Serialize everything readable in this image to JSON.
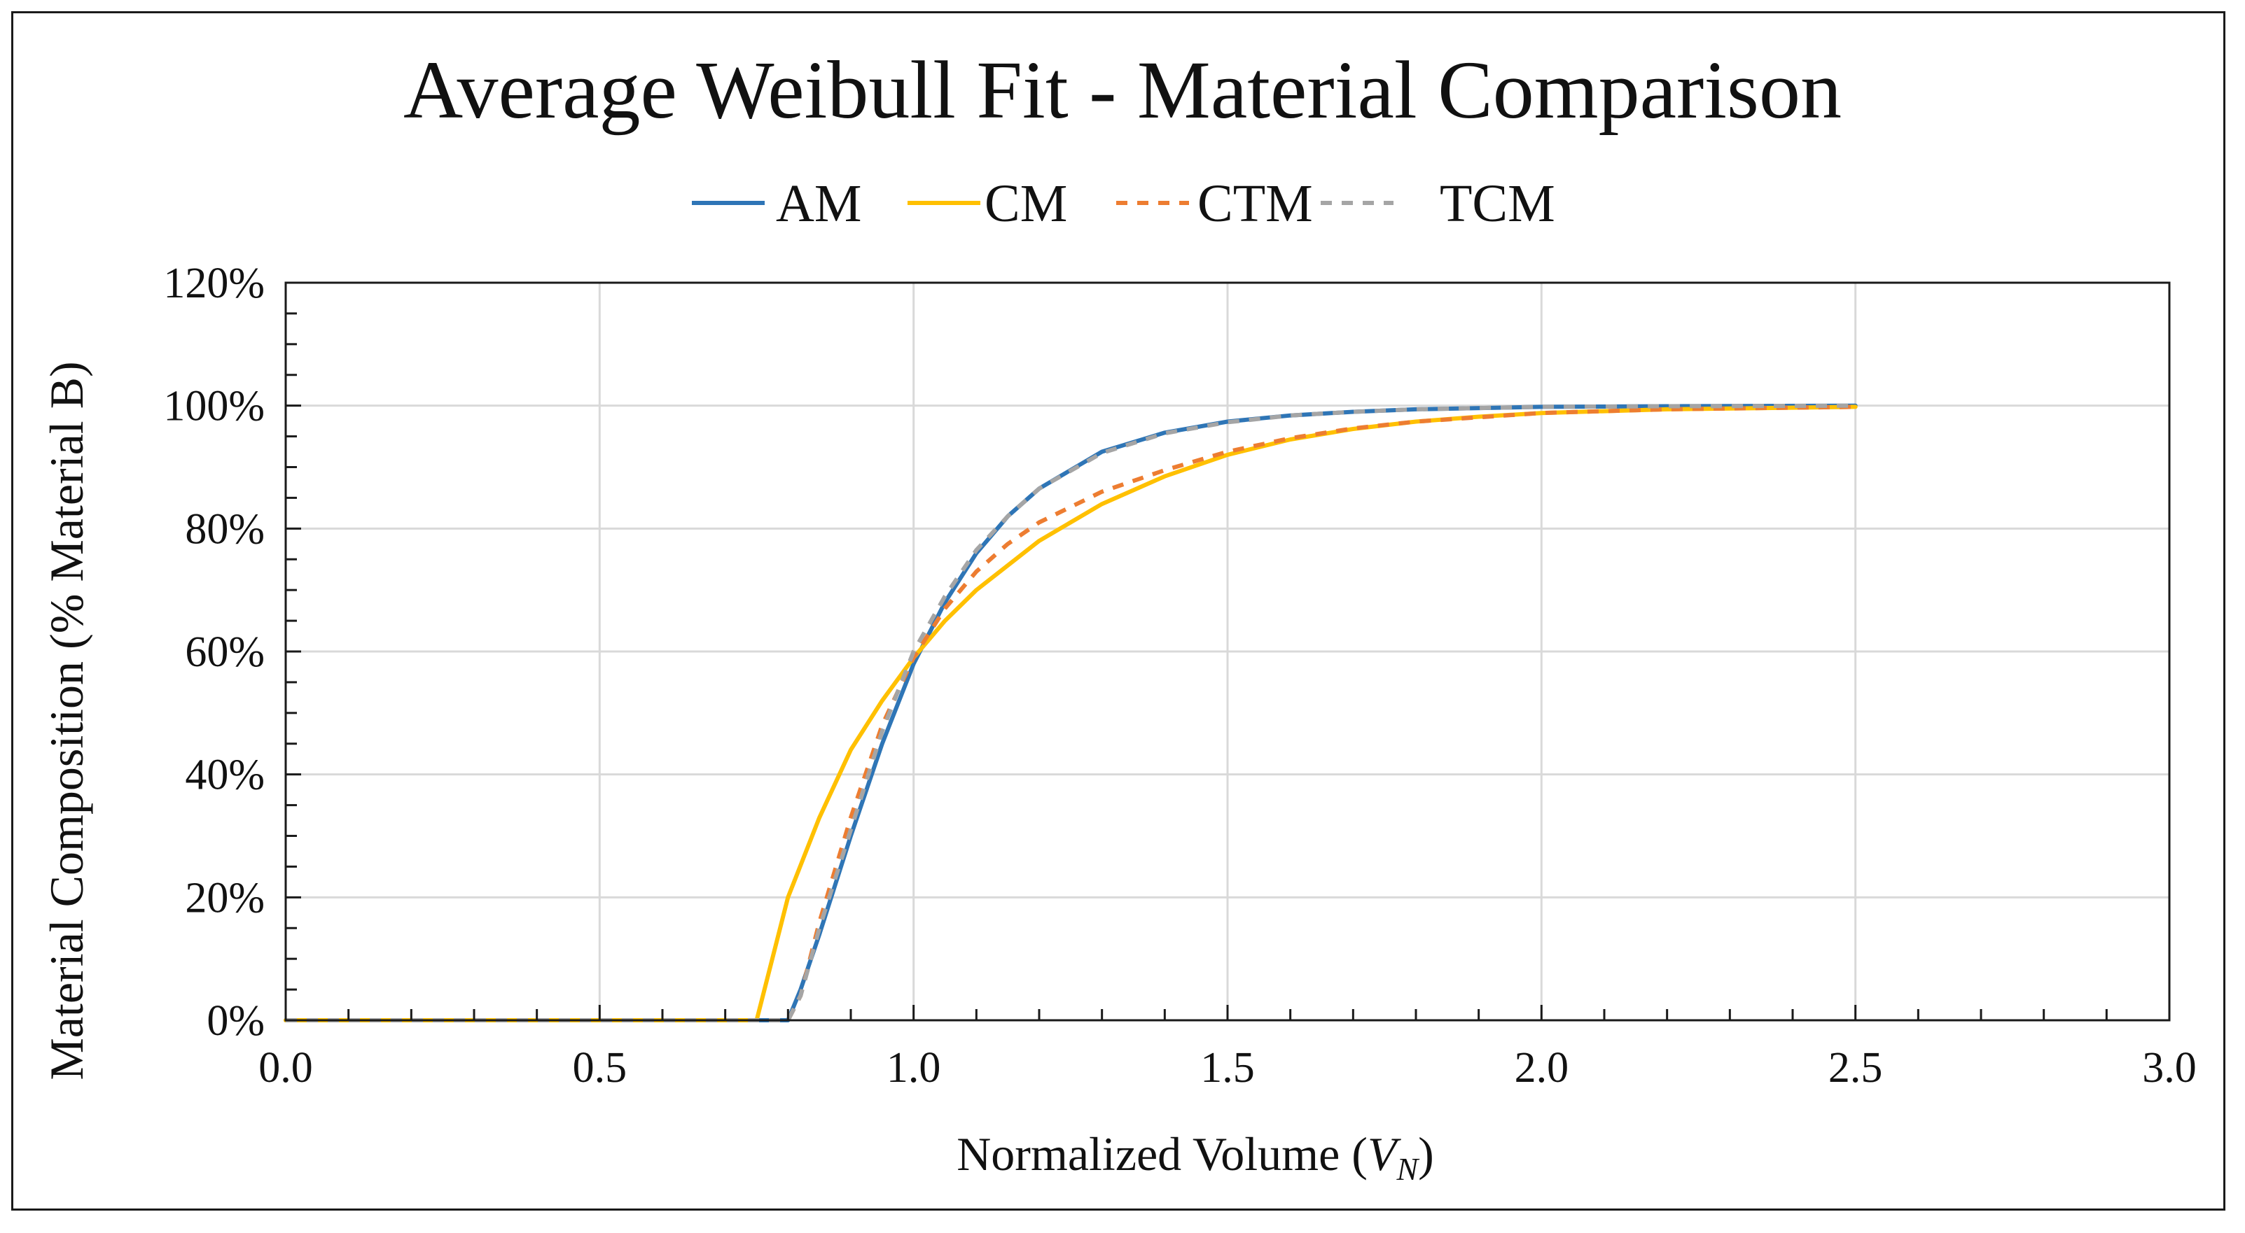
{
  "chart_data": {
    "type": "line",
    "title": "Average Weibull Fit - Material Comparison",
    "xlabel_prefix": "Normalized Volume (",
    "xlabel_var": "V",
    "xlabel_sub": "N",
    "xlabel_suffix": ")",
    "ylabel": "Material Composition (% Material B)",
    "xlim": [
      0,
      3
    ],
    "ylim": [
      0,
      120
    ],
    "x_ticks": [
      0,
      0.5,
      1,
      1.5,
      2,
      2.5,
      3
    ],
    "x_tick_labels": [
      "0.0",
      "0.5",
      "1.0",
      "1.5",
      "2.0",
      "2.5",
      "3.0"
    ],
    "y_ticks": [
      0,
      20,
      40,
      60,
      80,
      100,
      120
    ],
    "y_tick_labels": [
      "0%",
      "20%",
      "40%",
      "60%",
      "80%",
      "100%",
      "120%"
    ],
    "grid": true,
    "legend_position": "top",
    "series": [
      {
        "name": "AM",
        "color": "#2e75b6",
        "dashed": false,
        "x": [
          0,
          0.5,
          0.8,
          0.82,
          0.85,
          0.9,
          0.95,
          1.0,
          1.05,
          1.1,
          1.15,
          1.2,
          1.3,
          1.4,
          1.5,
          1.6,
          1.7,
          1.8,
          2.0,
          2.2,
          2.5
        ],
        "y": [
          0,
          0,
          0,
          5,
          14,
          30,
          45,
          58,
          68,
          76,
          82,
          86.5,
          92.5,
          95.6,
          97.4,
          98.4,
          99.0,
          99.4,
          99.8,
          99.9,
          100
        ]
      },
      {
        "name": "CM",
        "color": "#ffc000",
        "dashed": false,
        "x": [
          0,
          0.5,
          0.75,
          0.8,
          0.85,
          0.9,
          0.95,
          1.0,
          1.05,
          1.1,
          1.2,
          1.3,
          1.4,
          1.5,
          1.6,
          1.7,
          1.8,
          1.9,
          2.0,
          2.2,
          2.5
        ],
        "y": [
          0,
          0,
          0,
          20,
          33,
          44,
          52,
          59,
          65,
          70,
          78,
          84,
          88.5,
          92,
          94.5,
          96.2,
          97.4,
          98.2,
          98.8,
          99.4,
          99.8
        ]
      },
      {
        "name": "CTM",
        "color": "#ed7d31",
        "dashed": true,
        "x": [
          0,
          0.5,
          0.8,
          0.82,
          0.85,
          0.9,
          0.95,
          1.0,
          1.05,
          1.1,
          1.15,
          1.2,
          1.3,
          1.4,
          1.5,
          1.6,
          1.7,
          1.8,
          2.0,
          2.2,
          2.5
        ],
        "y": [
          0,
          0,
          0,
          4,
          16,
          33,
          48,
          59,
          67,
          73,
          77.5,
          81,
          86,
          89.5,
          92.5,
          94.7,
          96.3,
          97.4,
          98.8,
          99.4,
          99.8
        ]
      },
      {
        "name": "TCM",
        "color": "#a5a5a5",
        "dashed": true,
        "x": [
          0,
          0.5,
          0.8,
          0.82,
          0.85,
          0.9,
          0.95,
          1.0,
          1.05,
          1.1,
          1.15,
          1.2,
          1.3,
          1.4,
          1.5,
          1.6,
          1.7,
          1.8,
          2.0,
          2.2,
          2.5
        ],
        "y": [
          0,
          0,
          0,
          4,
          15,
          31,
          47,
          60,
          69,
          76.5,
          82,
          86.5,
          92.3,
          95.5,
          97.3,
          98.4,
          99.0,
          99.4,
          99.8,
          99.9,
          100
        ]
      }
    ]
  }
}
